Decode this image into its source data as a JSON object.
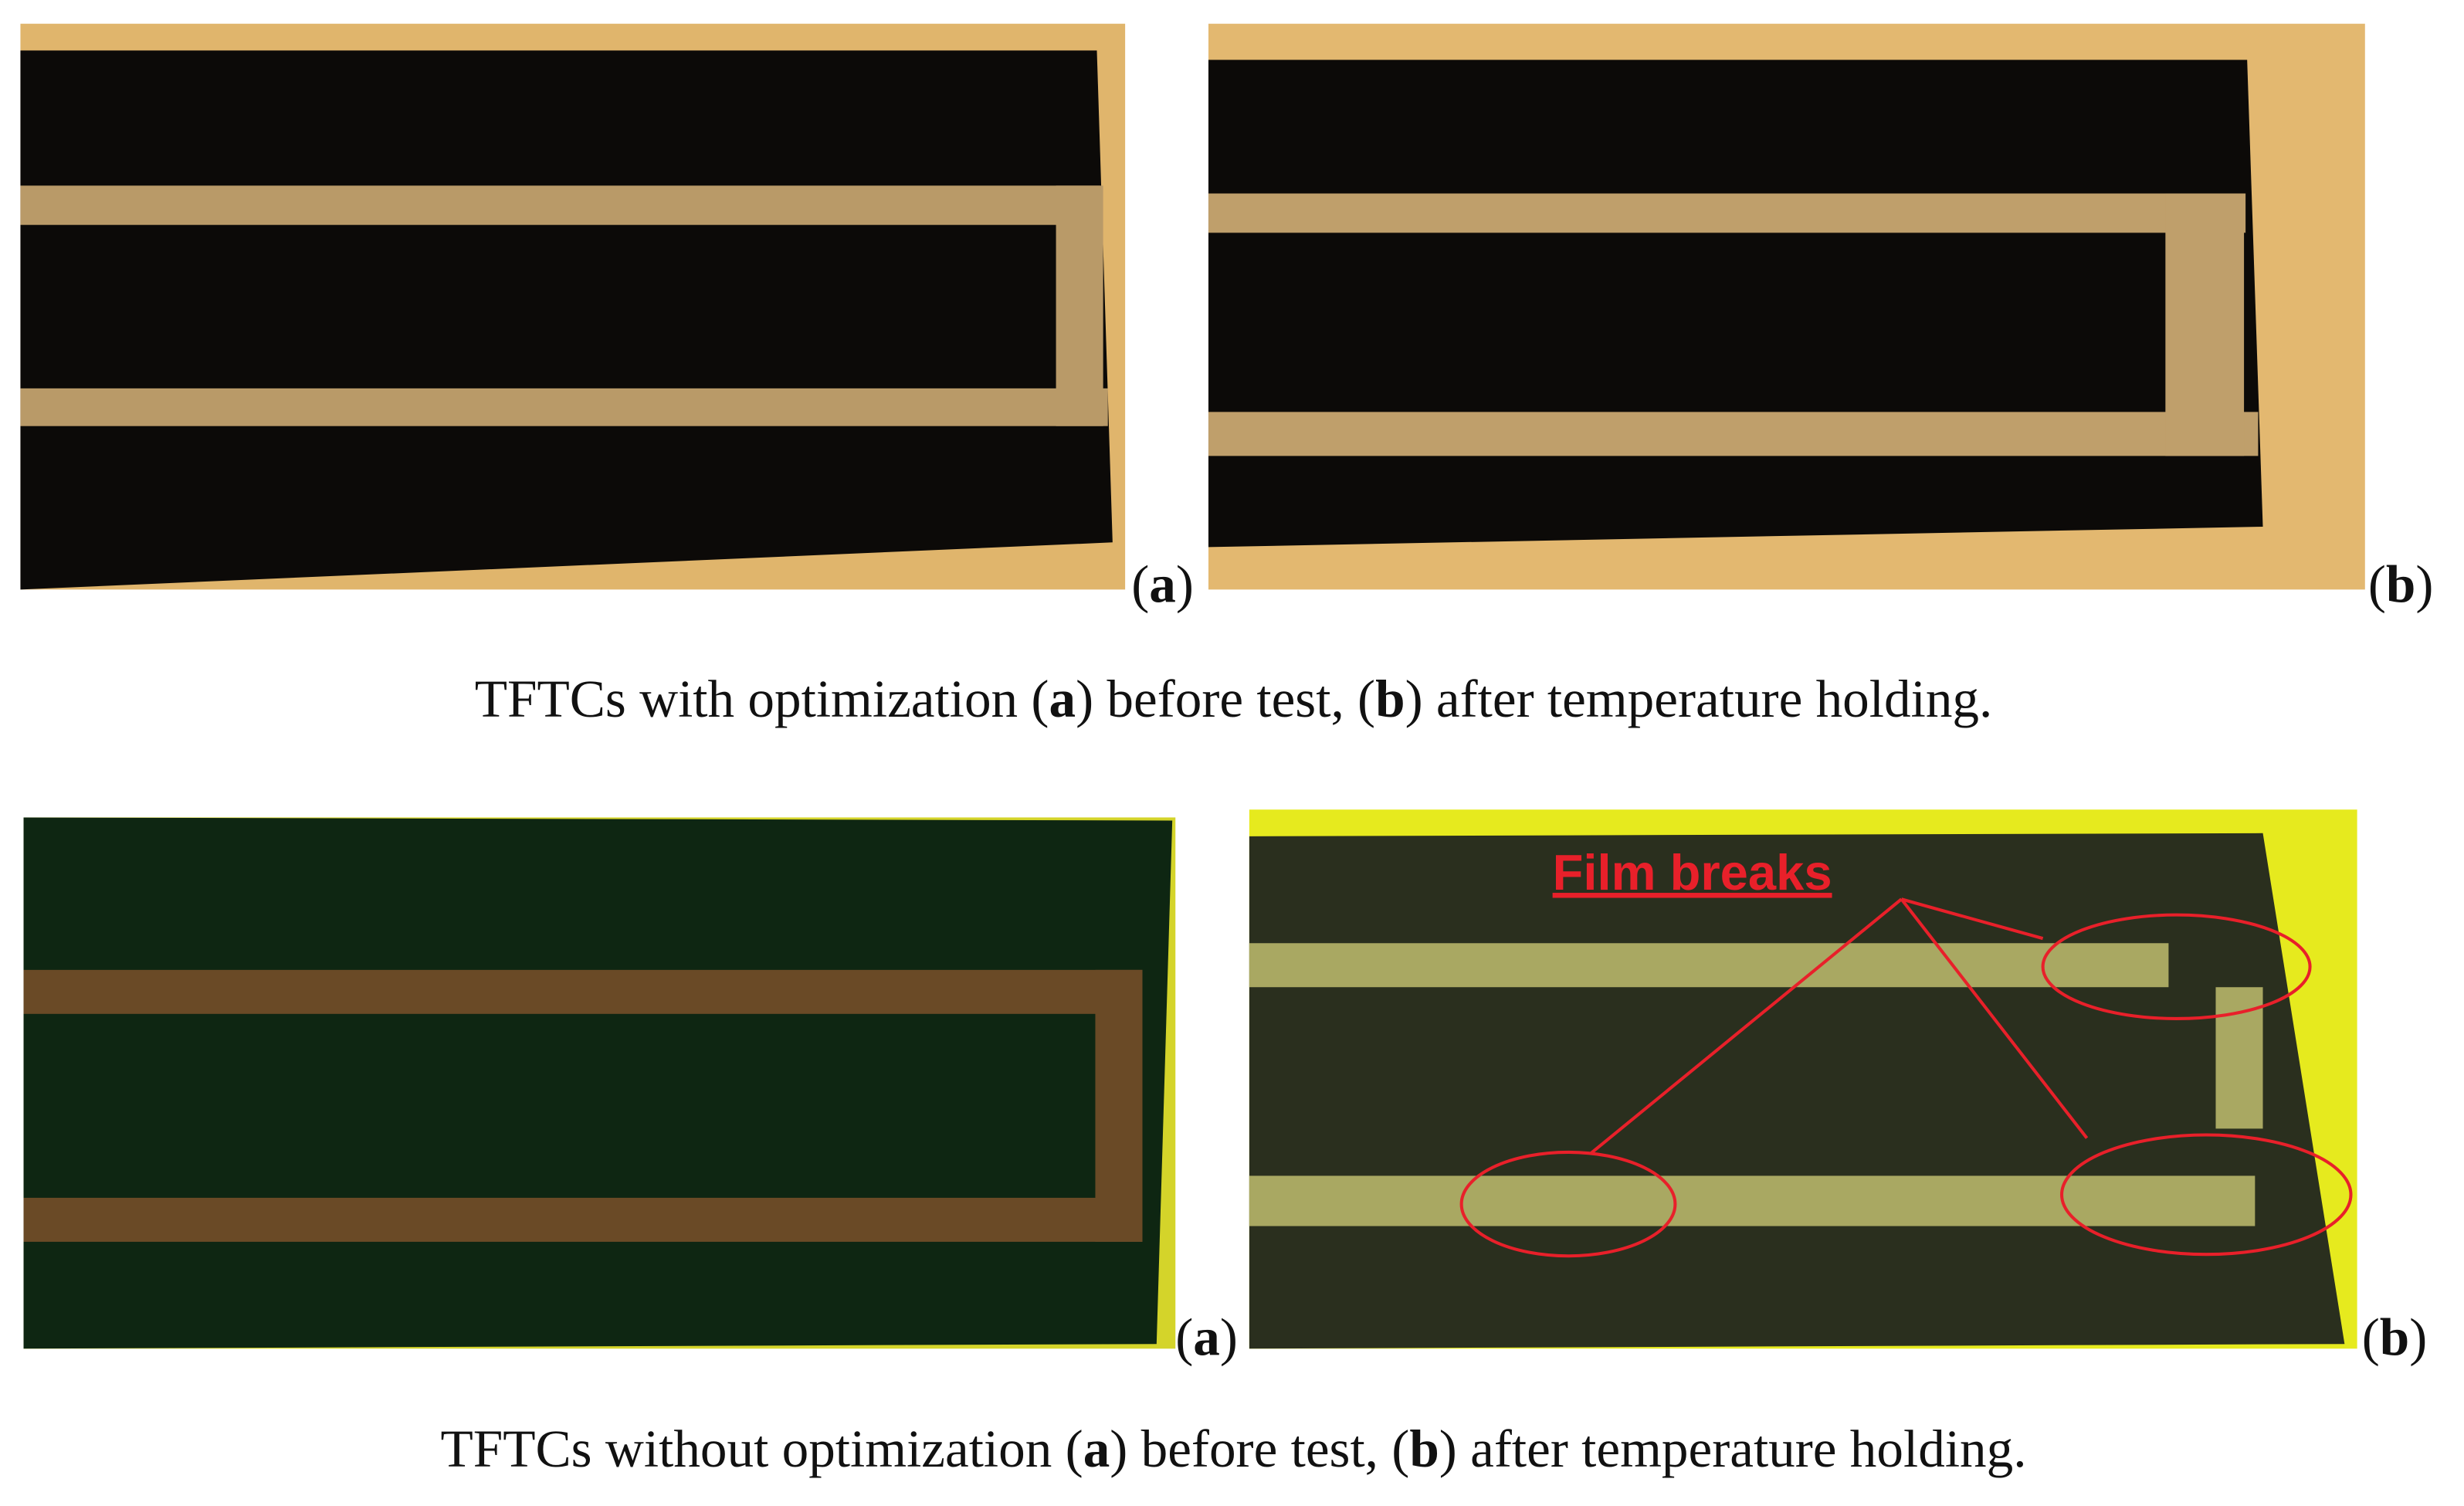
{
  "rows": [
    {
      "panels": [
        {
          "label": [
            "(",
            "a",
            ")"
          ]
        },
        {
          "label": [
            "(",
            "b",
            ")"
          ]
        }
      ],
      "caption": [
        "TFTCs with optimization (",
        "a",
        ") before test, (",
        "b",
        ") after temperature holding."
      ]
    },
    {
      "panels": [
        {
          "label": [
            "(",
            "a",
            ")"
          ]
        },
        {
          "label": [
            "(",
            "b",
            ")"
          ]
        }
      ],
      "caption": [
        "TFTCs without optimization (",
        "a",
        ") before test, (",
        "b",
        ") after temperature holding."
      ]
    }
  ],
  "annotation": "Film breaks"
}
